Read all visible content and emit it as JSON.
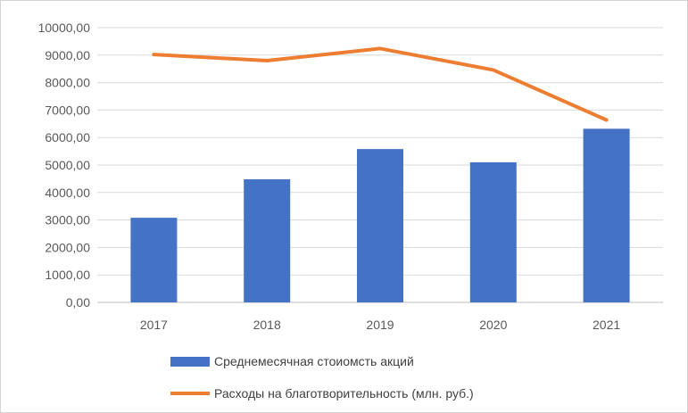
{
  "chart_data": {
    "type": "bar",
    "categories": [
      "2017",
      "2018",
      "2019",
      "2020",
      "2021"
    ],
    "series": [
      {
        "name": "Среднемесячная стоиомсть акций",
        "type": "bar",
        "color": "#4472c4",
        "values": [
          3080,
          4480,
          5580,
          5100,
          6320
        ]
      },
      {
        "name": "Расходы на благотворительность (млн. руб.)",
        "type": "line",
        "color": "#ed7d31",
        "values": [
          9020,
          8800,
          9240,
          8460,
          6640
        ]
      }
    ],
    "y_ticks": [
      "0,00",
      "1000,00",
      "2000,00",
      "3000,00",
      "4000,00",
      "5000,00",
      "6000,00",
      "7000,00",
      "8000,00",
      "9000,00",
      "10000,00"
    ],
    "ylim": [
      0,
      10000
    ],
    "grid": true,
    "legend_position": "bottom"
  }
}
